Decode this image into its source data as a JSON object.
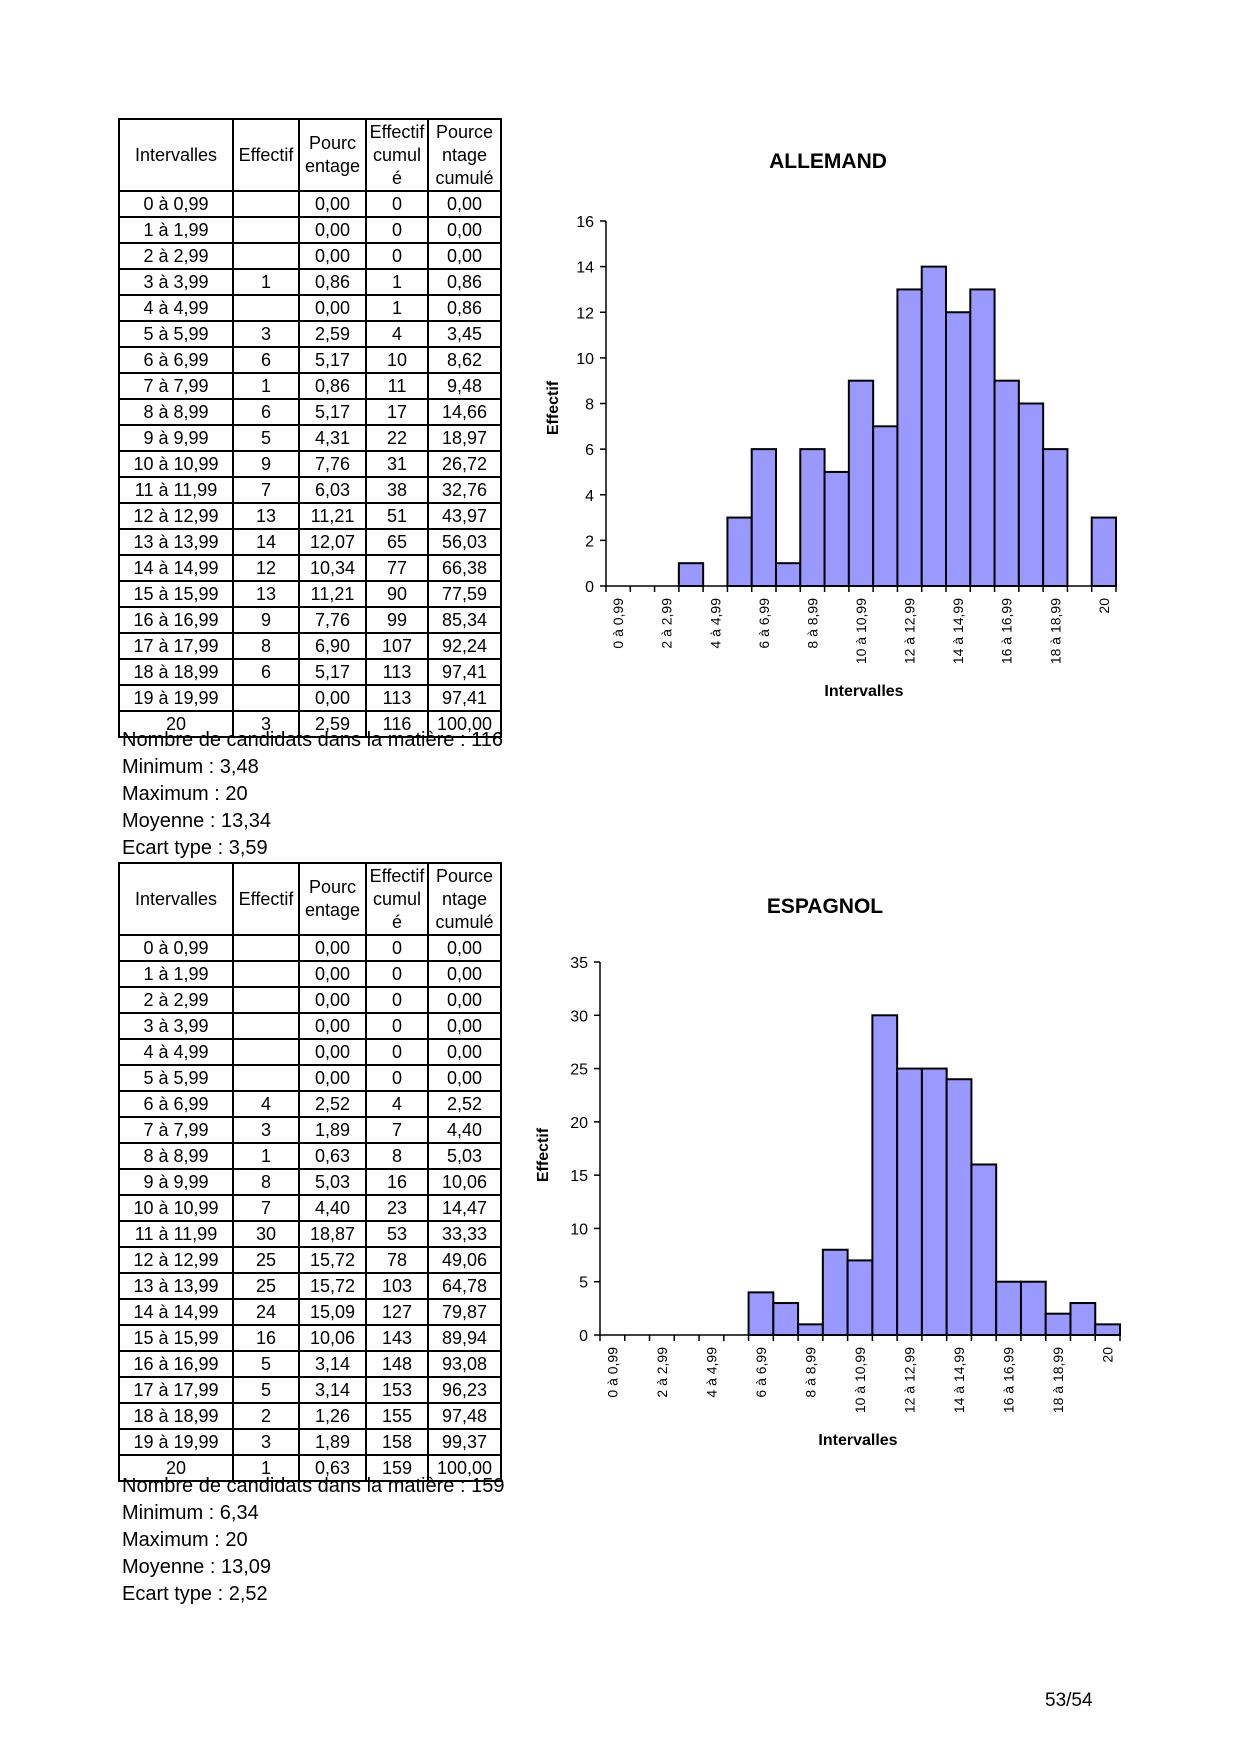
{
  "page_number": "53/54",
  "sections": [
    {
      "headers": {
        "interval": "Intervalles",
        "effectif": "Effectif",
        "pourcentage": [
          "Pourc",
          "entage"
        ],
        "effectif_cumule": [
          "Effectif",
          "cumul",
          "é"
        ],
        "pourcentage_cumule": [
          "Pource",
          "ntage",
          "cumulé"
        ]
      },
      "rows": [
        [
          "0 à 0,99",
          "",
          "0,00",
          "0",
          "0,00"
        ],
        [
          "1 à 1,99",
          "",
          "0,00",
          "0",
          "0,00"
        ],
        [
          "2 à 2,99",
          "",
          "0,00",
          "0",
          "0,00"
        ],
        [
          "3 à 3,99",
          "1",
          "0,86",
          "1",
          "0,86"
        ],
        [
          "4 à 4,99",
          "",
          "0,00",
          "1",
          "0,86"
        ],
        [
          "5 à 5,99",
          "3",
          "2,59",
          "4",
          "3,45"
        ],
        [
          "6 à 6,99",
          "6",
          "5,17",
          "10",
          "8,62"
        ],
        [
          "7 à 7,99",
          "1",
          "0,86",
          "11",
          "9,48"
        ],
        [
          "8 à 8,99",
          "6",
          "5,17",
          "17",
          "14,66"
        ],
        [
          "9 à 9,99",
          "5",
          "4,31",
          "22",
          "18,97"
        ],
        [
          "10 à 10,99",
          "9",
          "7,76",
          "31",
          "26,72"
        ],
        [
          "11 à 11,99",
          "7",
          "6,03",
          "38",
          "32,76"
        ],
        [
          "12 à 12,99",
          "13",
          "11,21",
          "51",
          "43,97"
        ],
        [
          "13 à 13,99",
          "14",
          "12,07",
          "65",
          "56,03"
        ],
        [
          "14 à 14,99",
          "12",
          "10,34",
          "77",
          "66,38"
        ],
        [
          "15 à 15,99",
          "13",
          "11,21",
          "90",
          "77,59"
        ],
        [
          "16 à 16,99",
          "9",
          "7,76",
          "99",
          "85,34"
        ],
        [
          "17 à 17,99",
          "8",
          "6,90",
          "107",
          "92,24"
        ],
        [
          "18 à 18,99",
          "6",
          "5,17",
          "113",
          "97,41"
        ],
        [
          "19 à 19,99",
          "",
          "0,00",
          "113",
          "97,41"
        ],
        [
          "20",
          "3",
          "2,59",
          "116",
          "100,00"
        ]
      ],
      "stats": {
        "candidats": "Nombre de candidats dans la matière : 116",
        "minimum": "Minimum : 3,48",
        "maximum": "Maximum : 20",
        "moyenne": "Moyenne : 13,34",
        "ecart_type": "Ecart type : 3,59"
      }
    },
    {
      "headers": {
        "interval": "Intervalles",
        "effectif": "Effectif",
        "pourcentage": [
          "Pourc",
          "entage"
        ],
        "effectif_cumule": [
          "Effectif",
          "cumul",
          "é"
        ],
        "pourcentage_cumule": [
          "Pource",
          "ntage",
          "cumulé"
        ]
      },
      "rows": [
        [
          "0 à 0,99",
          "",
          "0,00",
          "0",
          "0,00"
        ],
        [
          "1 à 1,99",
          "",
          "0,00",
          "0",
          "0,00"
        ],
        [
          "2 à 2,99",
          "",
          "0,00",
          "0",
          "0,00"
        ],
        [
          "3 à 3,99",
          "",
          "0,00",
          "0",
          "0,00"
        ],
        [
          "4 à 4,99",
          "",
          "0,00",
          "0",
          "0,00"
        ],
        [
          "5 à 5,99",
          "",
          "0,00",
          "0",
          "0,00"
        ],
        [
          "6 à 6,99",
          "4",
          "2,52",
          "4",
          "2,52"
        ],
        [
          "7 à 7,99",
          "3",
          "1,89",
          "7",
          "4,40"
        ],
        [
          "8 à 8,99",
          "1",
          "0,63",
          "8",
          "5,03"
        ],
        [
          "9 à 9,99",
          "8",
          "5,03",
          "16",
          "10,06"
        ],
        [
          "10 à 10,99",
          "7",
          "4,40",
          "23",
          "14,47"
        ],
        [
          "11 à 11,99",
          "30",
          "18,87",
          "53",
          "33,33"
        ],
        [
          "12 à 12,99",
          "25",
          "15,72",
          "78",
          "49,06"
        ],
        [
          "13 à 13,99",
          "25",
          "15,72",
          "103",
          "64,78"
        ],
        [
          "14 à 14,99",
          "24",
          "15,09",
          "127",
          "79,87"
        ],
        [
          "15 à 15,99",
          "16",
          "10,06",
          "143",
          "89,94"
        ],
        [
          "16 à 16,99",
          "5",
          "3,14",
          "148",
          "93,08"
        ],
        [
          "17 à 17,99",
          "5",
          "3,14",
          "153",
          "96,23"
        ],
        [
          "18 à 18,99",
          "2",
          "1,26",
          "155",
          "97,48"
        ],
        [
          "19 à 19,99",
          "3",
          "1,89",
          "158",
          "99,37"
        ],
        [
          "20",
          "1",
          "0,63",
          "159",
          "100,00"
        ]
      ],
      "stats": {
        "candidats": "Nombre de candidats dans la matière : 159",
        "minimum": "Minimum : 6,34",
        "maximum": "Maximum : 20",
        "moyenne": "Moyenne : 13,09",
        "ecart_type": "Ecart type : 2,52"
      }
    }
  ],
  "chart_data": [
    {
      "type": "bar",
      "title": "ALLEMAND",
      "xlabel": "Intervalles",
      "ylabel": "Effectif",
      "ylim": [
        0,
        16
      ],
      "yticks": [
        0,
        2,
        4,
        6,
        8,
        10,
        12,
        14,
        16
      ],
      "categories": [
        "0 à 0,99",
        "1 à 1,99",
        "2 à 2,99",
        "3 à 3,99",
        "4 à 4,99",
        "5 à 5,99",
        "6 à 6,99",
        "7 à 7,99",
        "8 à 8,99",
        "9 à 9,99",
        "10 à 10,99",
        "11 à 11,99",
        "12 à 12,99",
        "13 à 13,99",
        "14 à 14,99",
        "15 à 15,99",
        "16 à 16,99",
        "17 à 17,99",
        "18 à 18,99",
        "19 à 19,99",
        "20"
      ],
      "xtick_labels": [
        "0 à 0,99",
        "2 à 2,99",
        "4 à 4,99",
        "6 à 6,99",
        "8 à 8,99",
        "10 à 10,99",
        "12 à 12,99",
        "14 à 14,99",
        "16 à 16,99",
        "18 à 18,99",
        "20"
      ],
      "values": [
        0,
        0,
        0,
        1,
        0,
        3,
        6,
        1,
        6,
        5,
        9,
        7,
        13,
        14,
        12,
        13,
        9,
        8,
        6,
        0,
        3
      ],
      "bar_color": "#9999ff"
    },
    {
      "type": "bar",
      "title": "ESPAGNOL",
      "xlabel": "Intervalles",
      "ylabel": "Effectif",
      "ylim": [
        0,
        35
      ],
      "yticks": [
        0,
        5,
        10,
        15,
        20,
        25,
        30,
        35
      ],
      "categories": [
        "0 à 0,99",
        "1 à 1,99",
        "2 à 2,99",
        "3 à 3,99",
        "4 à 4,99",
        "5 à 5,99",
        "6 à 6,99",
        "7 à 7,99",
        "8 à 8,99",
        "9 à 9,99",
        "10 à 10,99",
        "11 à 11,99",
        "12 à 12,99",
        "13 à 13,99",
        "14 à 14,99",
        "15 à 15,99",
        "16 à 16,99",
        "17 à 17,99",
        "18 à 18,99",
        "19 à 19,99",
        "20"
      ],
      "xtick_labels": [
        "0 à 0,99",
        "2 à 2,99",
        "4 à 4,99",
        "6 à 6,99",
        "8 à 8,99",
        "10 à 10,99",
        "12 à 12,99",
        "14 à 14,99",
        "16 à 16,99",
        "18 à 18,99",
        "20"
      ],
      "values": [
        0,
        0,
        0,
        0,
        0,
        0,
        4,
        3,
        1,
        8,
        7,
        30,
        25,
        25,
        24,
        16,
        5,
        5,
        2,
        3,
        1
      ],
      "bar_color": "#9999ff"
    }
  ]
}
